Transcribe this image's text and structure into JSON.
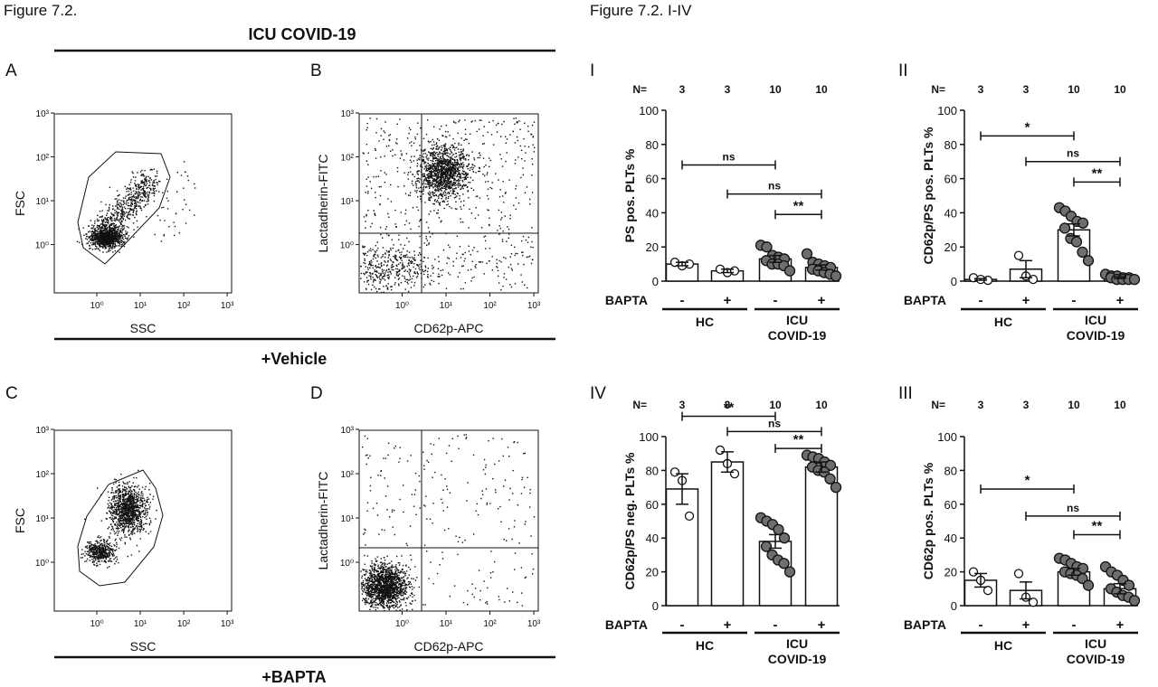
{
  "left": {
    "figure_title": "Figure 7.2.",
    "header_icu": "ICU COVID-19",
    "header_vehicle": "+Vehicle",
    "header_bapta": "+BAPTA",
    "panel_letters": [
      "A",
      "B",
      "C",
      "D"
    ],
    "fsc_label": "FSC",
    "ssc_label": "SSC",
    "lact_label": "Lactadherin-FITC",
    "cd62p_label": "CD62p-APC",
    "tick_labels": [
      "10⁰",
      "10¹",
      "10²",
      "10³"
    ]
  },
  "right": {
    "figure_title": "Figure 7.2. I-IV",
    "n_label": "N=",
    "bapta_label": "BAPTA",
    "group_labels": [
      "HC",
      "ICU",
      "COVID-19"
    ]
  },
  "chart_data": [
    {
      "id": "I",
      "type": "bar",
      "roman": "I",
      "ylabel": "PS pos. PLTs %",
      "ylim": [
        0,
        100
      ],
      "yticks": [
        0,
        20,
        40,
        60,
        80,
        100
      ],
      "n": [
        "3",
        "3",
        "10",
        "10"
      ],
      "bapta": [
        "-",
        "+",
        "-",
        "+"
      ],
      "values": [
        10,
        6,
        13,
        8
      ],
      "sem": [
        1,
        1,
        2,
        1.5
      ],
      "points": [
        [
          11,
          9,
          10
        ],
        [
          7,
          5,
          6
        ],
        [
          21,
          20,
          15,
          14,
          13,
          12,
          10,
          10,
          9,
          6
        ],
        [
          16,
          11,
          10,
          9,
          8,
          7,
          6,
          5,
          4,
          3
        ]
      ],
      "sig": [
        {
          "from": 0,
          "to": 2,
          "y": 68,
          "label": "ns"
        },
        {
          "from": 1,
          "to": 3,
          "y": 51,
          "label": "ns"
        },
        {
          "from": 2,
          "to": 3,
          "y": 39,
          "label": "**"
        }
      ]
    },
    {
      "id": "II",
      "type": "bar",
      "roman": "II",
      "ylabel": "CD62p/PS pos. PLTs %",
      "ylim": [
        0,
        100
      ],
      "yticks": [
        0,
        20,
        40,
        60,
        80,
        100
      ],
      "n": [
        "3",
        "3",
        "10",
        "10"
      ],
      "bapta": [
        "-",
        "+",
        "-",
        "+"
      ],
      "values": [
        1,
        7,
        30,
        2
      ],
      "sem": [
        0.5,
        5,
        3.5,
        0.5
      ],
      "points": [
        [
          2,
          1,
          0.5
        ],
        [
          15,
          3,
          1
        ],
        [
          43,
          41,
          38,
          35,
          34,
          31,
          25,
          23,
          17,
          12
        ],
        [
          4,
          3,
          3,
          2,
          2,
          2,
          1,
          1,
          1,
          1
        ]
      ],
      "sig": [
        {
          "from": 0,
          "to": 2,
          "y": 85,
          "label": "*"
        },
        {
          "from": 1,
          "to": 3,
          "y": 70,
          "label": "ns"
        },
        {
          "from": 2,
          "to": 3,
          "y": 58,
          "label": "**"
        }
      ]
    },
    {
      "id": "IV",
      "type": "bar",
      "roman": "IV",
      "ylabel": "CD62p/PS neg. PLTs %",
      "ylim": [
        0,
        100
      ],
      "yticks": [
        0,
        20,
        40,
        60,
        80,
        100
      ],
      "n": [
        "3",
        "3",
        "10",
        "10"
      ],
      "bapta": [
        "-",
        "+",
        "-",
        "+"
      ],
      "values": [
        69,
        85,
        38,
        82
      ],
      "sem": [
        9,
        6,
        4,
        3
      ],
      "points": [
        [
          79,
          74,
          53
        ],
        [
          92,
          84,
          78
        ],
        [
          52,
          50,
          48,
          45,
          40,
          35,
          30,
          27,
          25,
          20
        ],
        [
          89,
          88,
          87,
          85,
          83,
          82,
          80,
          79,
          75,
          70
        ]
      ],
      "sig": [
        {
          "from": 0,
          "to": 2,
          "y": 112,
          "label": "**"
        },
        {
          "from": 1,
          "to": 3,
          "y": 103,
          "label": "ns"
        },
        {
          "from": 2,
          "to": 3,
          "y": 93,
          "label": "**"
        }
      ]
    },
    {
      "id": "III",
      "type": "bar",
      "roman": "III",
      "ylabel": "CD62p pos. PLTs %",
      "ylim": [
        0,
        100
      ],
      "yticks": [
        0,
        20,
        40,
        60,
        80,
        100
      ],
      "n": [
        "3",
        "3",
        "10",
        "10"
      ],
      "bapta": [
        "-",
        "+",
        "-",
        "+"
      ],
      "values": [
        15,
        9,
        20,
        10
      ],
      "sem": [
        4,
        5,
        2,
        3
      ],
      "points": [
        [
          20,
          15,
          9
        ],
        [
          19,
          5,
          2
        ],
        [
          28,
          27,
          25,
          23,
          22,
          20,
          19,
          18,
          16,
          12
        ],
        [
          23,
          20,
          18,
          15,
          12,
          10,
          8,
          6,
          5,
          3
        ]
      ],
      "sig": [
        {
          "from": 0,
          "to": 2,
          "y": 69,
          "label": "*"
        },
        {
          "from": 1,
          "to": 3,
          "y": 53,
          "label": "ns"
        },
        {
          "from": 2,
          "to": 3,
          "y": 42,
          "label": "**"
        }
      ]
    }
  ]
}
